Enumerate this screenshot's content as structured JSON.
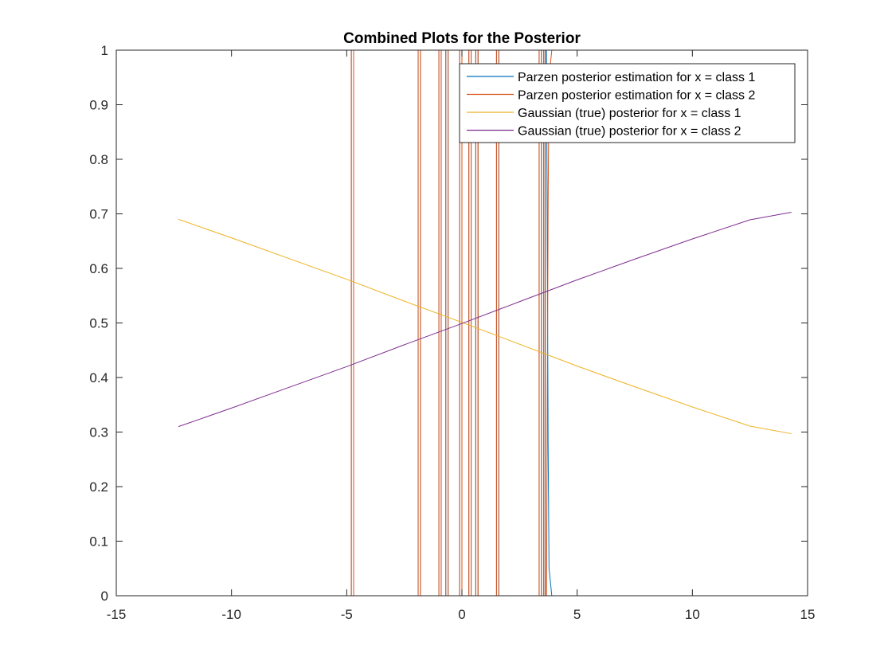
{
  "chart_data": {
    "type": "line",
    "title": "Combined Plots for the Posterior",
    "xlabel": "",
    "ylabel": "",
    "xlim": [
      -15,
      15
    ],
    "ylim": [
      0,
      1
    ],
    "xticks": [
      -15,
      -10,
      -5,
      0,
      5,
      10,
      15
    ],
    "yticks": [
      0,
      0.1,
      0.2,
      0.3,
      0.4,
      0.5,
      0.6,
      0.7,
      0.8,
      0.9,
      1
    ],
    "grid": false,
    "legend_position": "top-right",
    "series": [
      {
        "name": "Parzen posterior estimation for x = class 1",
        "color": "#0072BD",
        "x": [
          -7.7,
          -4.8,
          -4.8,
          -4.7,
          -4.7,
          -1.9,
          -1.9,
          -1.8,
          -1.8,
          -1.0,
          -1.0,
          -0.9,
          -0.9,
          -0.7,
          -0.7,
          -0.6,
          -0.6,
          -0.1,
          -0.1,
          0.0,
          0.0,
          0.3,
          0.3,
          0.4,
          0.4,
          0.6,
          0.6,
          0.7,
          0.7,
          1.5,
          1.5,
          1.6,
          1.6,
          3.35,
          3.35,
          3.45,
          3.45,
          3.55,
          3.55,
          3.62,
          3.62,
          3.67,
          3.7,
          3.74,
          3.78,
          3.9,
          4.4
        ],
        "y": [
          1,
          1,
          0,
          0,
          1,
          1,
          0,
          0,
          1,
          1,
          0,
          0,
          1,
          1,
          0,
          0,
          1,
          1,
          0,
          0,
          1,
          1,
          0,
          0,
          1,
          1,
          0,
          0,
          1,
          1,
          0,
          0,
          1,
          1,
          0,
          0,
          1,
          1,
          0,
          0,
          1,
          1,
          0.72,
          0.28,
          0.05,
          0,
          0
        ]
      },
      {
        "name": "Parzen posterior estimation for x = class 2",
        "color": "#D95319",
        "x": [
          -7.7,
          -4.8,
          -4.8,
          -4.7,
          -4.7,
          -1.9,
          -1.9,
          -1.8,
          -1.8,
          -1.0,
          -1.0,
          -0.9,
          -0.9,
          -0.7,
          -0.7,
          -0.6,
          -0.6,
          -0.1,
          -0.1,
          0.0,
          0.0,
          0.3,
          0.3,
          0.4,
          0.4,
          0.6,
          0.6,
          0.7,
          0.7,
          1.5,
          1.5,
          1.6,
          1.6,
          3.35,
          3.35,
          3.45,
          3.45,
          3.55,
          3.55,
          3.62,
          3.62,
          3.67,
          3.7,
          3.74,
          3.78,
          3.9,
          4.4
        ],
        "y": [
          0,
          0,
          1,
          1,
          0,
          0,
          1,
          1,
          0,
          0,
          1,
          1,
          0,
          0,
          1,
          1,
          0,
          0,
          1,
          1,
          0,
          0,
          1,
          1,
          0,
          0,
          1,
          1,
          0,
          0,
          1,
          1,
          0,
          0,
          1,
          1,
          0,
          0,
          1,
          1,
          0,
          0,
          0.28,
          0.72,
          0.95,
          1,
          1
        ]
      },
      {
        "name": "Gaussian (true) posterior for x = class 1",
        "color": "#EDB120",
        "x": [
          -12.3,
          -10,
          -7.5,
          -5,
          -2.5,
          0,
          2.5,
          5,
          7.5,
          10,
          12.5,
          14.3
        ],
        "y": [
          0.69,
          0.656,
          0.618,
          0.58,
          0.54,
          0.501,
          0.461,
          0.421,
          0.383,
          0.346,
          0.311,
          0.297
        ]
      },
      {
        "name": "Gaussian (true) posterior for x = class 2",
        "color": "#7E2F8E",
        "x": [
          -12.3,
          -10,
          -7.5,
          -5,
          -2.5,
          0,
          2.5,
          5,
          7.5,
          10,
          12.5,
          14.3
        ],
        "y": [
          0.31,
          0.344,
          0.382,
          0.42,
          0.46,
          0.499,
          0.539,
          0.579,
          0.617,
          0.654,
          0.689,
          0.703
        ]
      }
    ]
  }
}
